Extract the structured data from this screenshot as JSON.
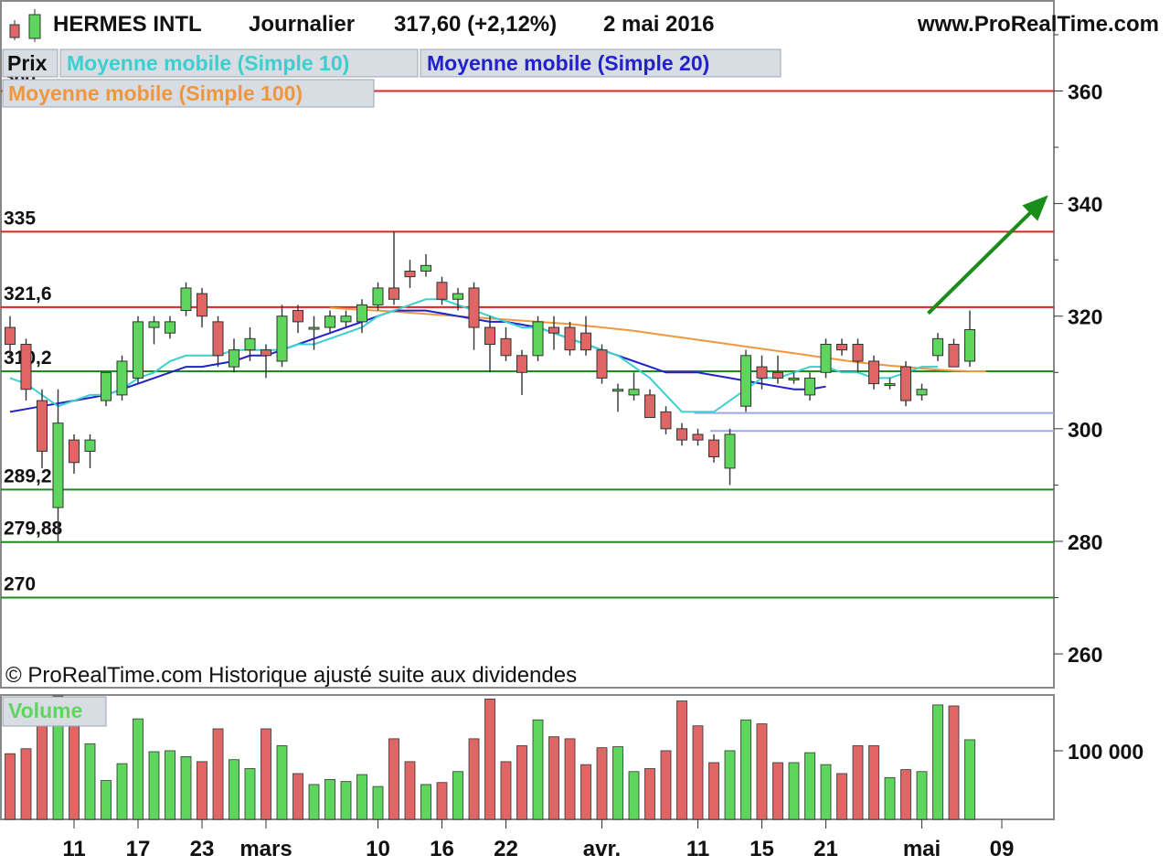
{
  "header": {
    "instrument": "HERMES INTL",
    "period": "Journalier",
    "price": "317,60 (+2,12%)",
    "date": "2 mai 2016",
    "website": "www.ProRealTime.com"
  },
  "legend": {
    "price": "Prix",
    "sma10": "Moyenne mobile (Simple 10)",
    "sma20": "Moyenne mobile (Simple 20)",
    "sma100": "Moyenne mobile (Simple 100)"
  },
  "copyright": "© ProRealTime.com  Historique ajusté suite aux dividendes",
  "volume_panel": {
    "label": "Volume",
    "tick": "100 000"
  },
  "colors": {
    "up": "#5ed65e",
    "down": "#e06666",
    "sma10": "#3ccfcf",
    "sma20": "#2222cc",
    "sma100": "#f0963c",
    "resistance": "#e02020",
    "support": "#1e8c1e",
    "arrow": "#1a8c1a",
    "gap": "#9aa8ee"
  },
  "chart_data": {
    "type": "candlestick",
    "ylim": [
      254,
      376
    ],
    "y_ticks": [
      {
        "value": 260,
        "label": "260"
      },
      {
        "value": 280,
        "label": "280"
      },
      {
        "value": 300,
        "label": "300"
      },
      {
        "value": 320,
        "label": "320"
      },
      {
        "value": 340,
        "label": "340"
      },
      {
        "value": 360,
        "label": "360"
      }
    ],
    "x_labels": [
      {
        "index": 4,
        "label": "11"
      },
      {
        "index": 8,
        "label": "17"
      },
      {
        "index": 12,
        "label": "23"
      },
      {
        "index": 16,
        "label": "mars"
      },
      {
        "index": 23,
        "label": "10"
      },
      {
        "index": 27,
        "label": "16"
      },
      {
        "index": 31,
        "label": "22"
      },
      {
        "index": 37,
        "label": "avr."
      },
      {
        "index": 43,
        "label": "11"
      },
      {
        "index": 47,
        "label": "15"
      },
      {
        "index": 51,
        "label": "21"
      },
      {
        "index": 57,
        "label": "mai"
      },
      {
        "index": 62,
        "label": "09"
      }
    ],
    "levels": [
      {
        "value": 360,
        "label": "360",
        "kind": "resistance"
      },
      {
        "value": 335,
        "label": "335",
        "kind": "resistance"
      },
      {
        "value": 321.6,
        "label": "321,6",
        "kind": "resistance"
      },
      {
        "value": 310.2,
        "label": "310,2",
        "kind": "support"
      },
      {
        "value": 289.2,
        "label": "289,2",
        "kind": "support"
      },
      {
        "value": 279.88,
        "label": "279,88",
        "kind": "support"
      },
      {
        "value": 270,
        "label": "270",
        "kind": "support"
      }
    ],
    "gap_lines": [
      {
        "value": 302.8,
        "from_index": 43
      },
      {
        "value": 299.6,
        "from_index": 44
      }
    ],
    "arrow": {
      "from": [
        57.4,
        320.5
      ],
      "to": [
        64.9,
        341.5
      ]
    },
    "candles": [
      {
        "o": 318,
        "h": 320,
        "l": 313,
        "c": 315
      },
      {
        "o": 315,
        "h": 316,
        "l": 305,
        "c": 307
      },
      {
        "o": 305,
        "h": 307,
        "l": 293,
        "c": 296
      },
      {
        "o": 286,
        "h": 307,
        "l": 280,
        "c": 301
      },
      {
        "o": 298,
        "h": 299,
        "l": 292,
        "c": 294
      },
      {
        "o": 296,
        "h": 299,
        "l": 293,
        "c": 298
      },
      {
        "o": 305,
        "h": 310,
        "l": 304,
        "c": 310
      },
      {
        "o": 306,
        "h": 313,
        "l": 305,
        "c": 312
      },
      {
        "o": 309,
        "h": 320,
        "l": 308,
        "c": 319
      },
      {
        "o": 318,
        "h": 320,
        "l": 315,
        "c": 319
      },
      {
        "o": 317,
        "h": 320,
        "l": 316,
        "c": 319
      },
      {
        "o": 321,
        "h": 326,
        "l": 320,
        "c": 325
      },
      {
        "o": 324,
        "h": 325,
        "l": 318,
        "c": 320
      },
      {
        "o": 319,
        "h": 320,
        "l": 311,
        "c": 313
      },
      {
        "o": 311,
        "h": 316,
        "l": 310,
        "c": 314
      },
      {
        "o": 314,
        "h": 318,
        "l": 312,
        "c": 316
      },
      {
        "o": 314,
        "h": 315,
        "l": 309,
        "c": 313
      },
      {
        "o": 312,
        "h": 322,
        "l": 311,
        "c": 320
      },
      {
        "o": 321,
        "h": 322,
        "l": 317,
        "c": 319
      },
      {
        "o": 318,
        "h": 320,
        "l": 314,
        "c": 318
      },
      {
        "o": 318,
        "h": 321,
        "l": 317,
        "c": 320
      },
      {
        "o": 319,
        "h": 321,
        "l": 318,
        "c": 320
      },
      {
        "o": 319,
        "h": 323,
        "l": 317,
        "c": 322
      },
      {
        "o": 322,
        "h": 326,
        "l": 321,
        "c": 325
      },
      {
        "o": 325,
        "h": 335,
        "l": 322,
        "c": 323
      },
      {
        "o": 328,
        "h": 330,
        "l": 325,
        "c": 327
      },
      {
        "o": 328,
        "h": 331,
        "l": 327,
        "c": 329
      },
      {
        "o": 326,
        "h": 327,
        "l": 322,
        "c": 323
      },
      {
        "o": 323,
        "h": 325,
        "l": 321,
        "c": 324
      },
      {
        "o": 325,
        "h": 326,
        "l": 314,
        "c": 318
      },
      {
        "o": 318,
        "h": 320,
        "l": 310,
        "c": 315
      },
      {
        "o": 316,
        "h": 318,
        "l": 312,
        "c": 313
      },
      {
        "o": 313,
        "h": 314,
        "l": 306,
        "c": 310
      },
      {
        "o": 313,
        "h": 320,
        "l": 312,
        "c": 319
      },
      {
        "o": 318,
        "h": 320,
        "l": 314,
        "c": 317
      },
      {
        "o": 318,
        "h": 319,
        "l": 313,
        "c": 314
      },
      {
        "o": 317,
        "h": 320,
        "l": 313,
        "c": 314
      },
      {
        "o": 314,
        "h": 315,
        "l": 308,
        "c": 309
      },
      {
        "o": 307,
        "h": 308,
        "l": 303,
        "c": 307
      },
      {
        "o": 306,
        "h": 310,
        "l": 305,
        "c": 307
      },
      {
        "o": 306,
        "h": 307,
        "l": 302,
        "c": 302
      },
      {
        "o": 303,
        "h": 304,
        "l": 299,
        "c": 300
      },
      {
        "o": 300,
        "h": 301,
        "l": 297,
        "c": 298
      },
      {
        "o": 299,
        "h": 300,
        "l": 297,
        "c": 298
      },
      {
        "o": 298,
        "h": 299,
        "l": 294,
        "c": 295
      },
      {
        "o": 293,
        "h": 300,
        "l": 290,
        "c": 299
      },
      {
        "o": 304,
        "h": 314,
        "l": 303,
        "c": 313
      },
      {
        "o": 311,
        "h": 313,
        "l": 307,
        "c": 309
      },
      {
        "o": 310,
        "h": 313,
        "l": 308,
        "c": 309
      },
      {
        "o": 309,
        "h": 310,
        "l": 308,
        "c": 309
      },
      {
        "o": 306,
        "h": 310,
        "l": 305,
        "c": 309
      },
      {
        "o": 310,
        "h": 316,
        "l": 309,
        "c": 315
      },
      {
        "o": 315,
        "h": 316,
        "l": 313,
        "c": 314
      },
      {
        "o": 315,
        "h": 316,
        "l": 310,
        "c": 312
      },
      {
        "o": 312,
        "h": 313,
        "l": 307,
        "c": 308
      },
      {
        "o": 308,
        "h": 309,
        "l": 307,
        "c": 308
      },
      {
        "o": 311,
        "h": 312,
        "l": 304,
        "c": 305
      },
      {
        "o": 306,
        "h": 308,
        "l": 305,
        "c": 307
      },
      {
        "o": 313,
        "h": 317,
        "l": 312,
        "c": 316
      },
      {
        "o": 315,
        "h": 316,
        "l": 311,
        "c": 311
      },
      {
        "o": 312,
        "h": 321,
        "l": 311,
        "c": 317.6
      }
    ],
    "volume_ylim": [
      0,
      125000
    ],
    "volumes": [
      66000,
      71000,
      121000,
      124000,
      103000,
      76000,
      39000,
      56000,
      101000,
      68000,
      69000,
      63000,
      58000,
      91000,
      60000,
      51000,
      91000,
      74000,
      46000,
      35000,
      40000,
      38000,
      45000,
      33000,
      81000,
      58000,
      35000,
      37000,
      48000,
      81000,
      121000,
      58000,
      74000,
      100000,
      83000,
      81000,
      55000,
      72000,
      73000,
      48000,
      51000,
      69000,
      119000,
      94000,
      57000,
      69000,
      100000,
      96000,
      57000,
      57000,
      67000,
      55000,
      46000,
      74000,
      74000,
      42000,
      50000,
      48000,
      115000,
      114000,
      80000
    ],
    "sma10": [
      309,
      308,
      306,
      304,
      305,
      306,
      306,
      307,
      309,
      310,
      312,
      313,
      313,
      313,
      314,
      314,
      314,
      314,
      315,
      315,
      316,
      317,
      318,
      320,
      321,
      322,
      323,
      323,
      322,
      321,
      320,
      319,
      318,
      318,
      317,
      316,
      315,
      314,
      313,
      311,
      309,
      306,
      303,
      303,
      303,
      305,
      307,
      309,
      309,
      310,
      311,
      311,
      310,
      310,
      309,
      309,
      310,
      311,
      311
    ],
    "sma20": [
      303,
      303.5,
      304,
      304.5,
      305,
      305.5,
      306,
      307,
      308,
      309,
      310,
      311,
      311,
      311.5,
      312,
      313,
      313,
      314,
      315,
      316,
      317,
      318,
      319,
      320,
      321,
      321,
      321,
      320.5,
      320,
      319.5,
      319,
      319,
      318.5,
      318,
      317,
      316,
      315,
      314,
      313,
      312,
      311,
      310,
      310,
      310,
      309.5,
      309,
      308.5,
      308,
      307.5,
      307,
      307,
      307.5
    ],
    "sma100": [
      321.5,
      321.3,
      321.1,
      321,
      320.8,
      320.6,
      320.4,
      320.2,
      320,
      319.8,
      319.6,
      319.4,
      319.2,
      319,
      318.8,
      318.6,
      318.3,
      318,
      317.7,
      317.4,
      317,
      316.6,
      316.2,
      315.8,
      315.4,
      315,
      314.6,
      314.2,
      313.8,
      313.4,
      313,
      312.6,
      312.2,
      311.8,
      311.5,
      311.2,
      311,
      310.7,
      310.5,
      310.3,
      310.2,
      310.2
    ],
    "sma20_start": 0,
    "sma10_start": 0,
    "sma100_start": 20
  }
}
